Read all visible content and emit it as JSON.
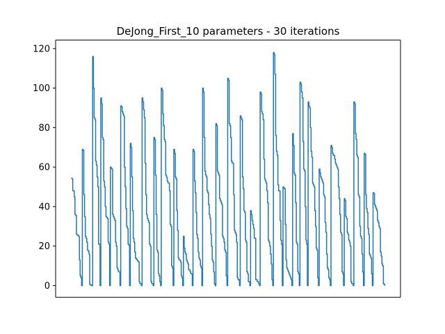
{
  "chart_data": {
    "type": "line",
    "title": "DeJong_First_10 parameters - 30 iterations",
    "xlabel": "",
    "ylabel": "",
    "ylim": [
      -5.9,
      124.3
    ],
    "yticks": [
      0,
      20,
      40,
      60,
      80,
      100,
      120
    ],
    "xticks_visible": false,
    "grid": false,
    "series": [
      {
        "color": "#1f77b4",
        "values": [
          54.5,
          54,
          48,
          48,
          45,
          36,
          35.5,
          26,
          25.5,
          25.5,
          25,
          13,
          5,
          4,
          0,
          69,
          68.5,
          46,
          35,
          25,
          24,
          22,
          18,
          17.5,
          16,
          0.5,
          0.5,
          0,
          0,
          116,
          100,
          85,
          84,
          63,
          61,
          55,
          50,
          21,
          21,
          0,
          95,
          92,
          75,
          74,
          53,
          50,
          40,
          35,
          34.5,
          34,
          22,
          21,
          0,
          60,
          59.5,
          59,
          36,
          35,
          34,
          33,
          22,
          20,
          9,
          8,
          7,
          7,
          0,
          91,
          90.5,
          88,
          87,
          86,
          60,
          50,
          39,
          30,
          29,
          21,
          20.5,
          0,
          72,
          70,
          55,
          38,
          24,
          22,
          17,
          14,
          13.5,
          13,
          12.5,
          12,
          2,
          1,
          1,
          0,
          95,
          93,
          89,
          85,
          62,
          46,
          36,
          34,
          33,
          32,
          21,
          20,
          2,
          1,
          1,
          0,
          75,
          74,
          56,
          36,
          18,
          17,
          6,
          5,
          2,
          0,
          100,
          99,
          87,
          81,
          74,
          73,
          56,
          55,
          53,
          52,
          52,
          48,
          31,
          30,
          10,
          9,
          0,
          69,
          67,
          55,
          54,
          38,
          28,
          14,
          13,
          13,
          12,
          5,
          4,
          0,
          25,
          19,
          17,
          16,
          13,
          12,
          11,
          8,
          8,
          7,
          6,
          6,
          0,
          69,
          68,
          53,
          47,
          37,
          26,
          24,
          17,
          14,
          13,
          10,
          9,
          0,
          100,
          98,
          75,
          58,
          56,
          55,
          48,
          47,
          41,
          36,
          34,
          26,
          20,
          13,
          12,
          7,
          1,
          0,
          82,
          81,
          58,
          57,
          56,
          44,
          43,
          42,
          41,
          25,
          24,
          22,
          18,
          17,
          5,
          0,
          105,
          104,
          82,
          81,
          75,
          63,
          62,
          62,
          46,
          28,
          27,
          26,
          22,
          4,
          3,
          3,
          0,
          86,
          85,
          84,
          55,
          49,
          38,
          37,
          23,
          22,
          7,
          6,
          2,
          2,
          0,
          38,
          36,
          33,
          31,
          29,
          24,
          24,
          3,
          3,
          2,
          2,
          1,
          0,
          98,
          97,
          88,
          87,
          84,
          64,
          54,
          53,
          52,
          48,
          42,
          23,
          22,
          20,
          16,
          11,
          3,
          0,
          118,
          117,
          107,
          76,
          68,
          66,
          51,
          48,
          48,
          33,
          23,
          21,
          0,
          50,
          49.5,
          49,
          31,
          13,
          9,
          8,
          7,
          6,
          5,
          4,
          3,
          0,
          77,
          71,
          57,
          56,
          42,
          22,
          21,
          7,
          6,
          0,
          103,
          102,
          98,
          95,
          73,
          59,
          58,
          40,
          23,
          21,
          0,
          93,
          91,
          90,
          80,
          68,
          65,
          52,
          51,
          50,
          38,
          30,
          19,
          18,
          4,
          0,
          59,
          57,
          55,
          54,
          53,
          52,
          46,
          45,
          32,
          27,
          16,
          9,
          8,
          4,
          3,
          0,
          71,
          70,
          67,
          66,
          66,
          64,
          62,
          61,
          60,
          59,
          50,
          44,
          36,
          27,
          26,
          7,
          6,
          0,
          44,
          43,
          35,
          34,
          27,
          26,
          23,
          22,
          20,
          2,
          1,
          1,
          0,
          93,
          92,
          77,
          74,
          66,
          65,
          46,
          45,
          30,
          25,
          24,
          16,
          7,
          0,
          67,
          66.5,
          46,
          39,
          37,
          29,
          26,
          16,
          15,
          14,
          6,
          0,
          47,
          46.5,
          41,
          40,
          39,
          38,
          33,
          32,
          30,
          29,
          17,
          15,
          11,
          10,
          1,
          0.5,
          0
        ]
      }
    ]
  }
}
